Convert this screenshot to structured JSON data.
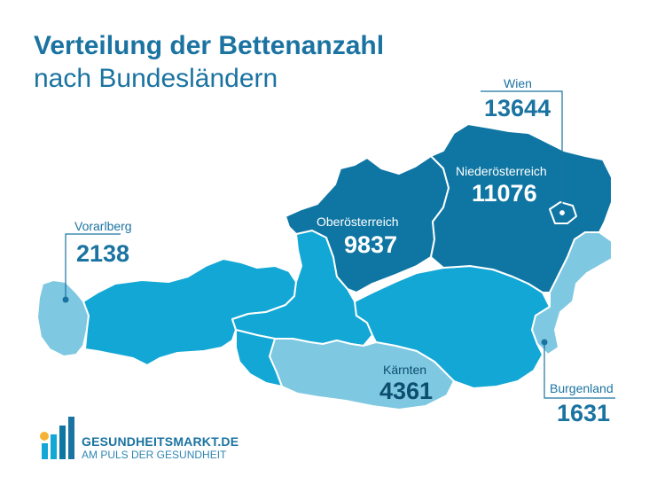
{
  "title": {
    "line1": "Verteilung der Bettenanzahl",
    "line2": "nach Bundesländern"
  },
  "regions": [
    {
      "name": "Wien",
      "value": "13644"
    },
    {
      "name": "Niederösterreich",
      "value": "11076"
    },
    {
      "name": "Oberösterreich",
      "value": "9837"
    },
    {
      "name": "Vorarlberg",
      "value": "2138"
    },
    {
      "name": "Kärnten",
      "value": "4361"
    },
    {
      "name": "Burgenland",
      "value": "1631"
    }
  ],
  "colors": {
    "title": "#1a73a1",
    "dark_region": "#0f76a3",
    "mid_region": "#12a7d5",
    "light_region": "#7ec8e1",
    "border": "#ffffff"
  },
  "logo": {
    "name": "GESUNDHEITSMARKT.DE",
    "tagline": "AM PULS DER GESUNDHEIT"
  }
}
